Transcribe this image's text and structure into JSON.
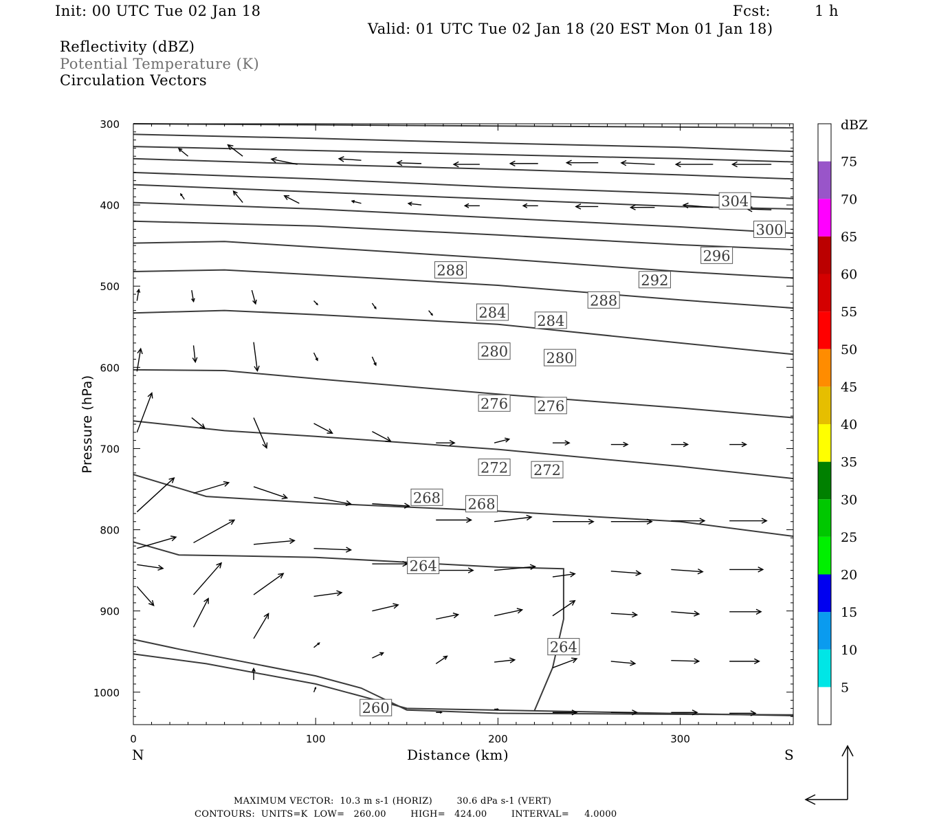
{
  "header": {
    "init": "Init: 00 UTC Tue 02 Jan 18",
    "fcst_label": "Fcst:",
    "fcst_value": "1 h",
    "valid": "Valid: 01 UTC Tue 02 Jan 18 (20 EST Mon 01 Jan 18)"
  },
  "legend_fields": {
    "line1": "Reflectivity (dBZ)",
    "line2": "Potential Temperature (K)",
    "line3": "Circulation Vectors"
  },
  "footer": {
    "line1": "MAXIMUM VECTOR:  10.3 m s-1 (HORIZ)        30.6 dPa s-1 (VERT)",
    "line2": "CONTOURS:  UNITS=K  LOW=   260.00        HIGH=   424.00        INTERVAL=     4.0000"
  },
  "colors": {
    "contour": "#3a3a3a",
    "vector": "#000000",
    "frame": "#000000"
  },
  "chart_data": {
    "type": "line",
    "xlabel": "Distance (km)",
    "ylabel": "Pressure (hPa)",
    "x_left_label": "N",
    "x_right_label": "S",
    "xlim": [
      0,
      362
    ],
    "ylim": [
      1040,
      300
    ],
    "xticks": [
      0,
      100,
      200,
      300
    ],
    "yticks": [
      300,
      400,
      500,
      600,
      700,
      800,
      900,
      1000
    ],
    "colorbar": {
      "unit": "dBZ",
      "bins": [
        {
          "from": 0,
          "to": 5,
          "color": "#ffffff"
        },
        {
          "from": 5,
          "to": 10,
          "color": "#00e6e6"
        },
        {
          "from": 10,
          "to": 15,
          "color": "#0a9bef"
        },
        {
          "from": 15,
          "to": 20,
          "color": "#0000f0"
        },
        {
          "from": 20,
          "to": 25,
          "color": "#00f000"
        },
        {
          "from": 25,
          "to": 30,
          "color": "#00c800"
        },
        {
          "from": 30,
          "to": 35,
          "color": "#008000"
        },
        {
          "from": 35,
          "to": 40,
          "color": "#ffff00"
        },
        {
          "from": 40,
          "to": 45,
          "color": "#e6be00"
        },
        {
          "from": 45,
          "to": 50,
          "color": "#ff8c00"
        },
        {
          "from": 50,
          "to": 55,
          "color": "#ff0000"
        },
        {
          "from": 55,
          "to": 60,
          "color": "#d40000"
        },
        {
          "from": 60,
          "to": 65,
          "color": "#bb0000"
        },
        {
          "from": 65,
          "to": 70,
          "color": "#ff00ff"
        },
        {
          "from": 70,
          "to": 75,
          "color": "#9955c9"
        },
        {
          "from": 75,
          "to": 80,
          "color": "#ffffff"
        }
      ],
      "labels": [
        "5",
        "10",
        "15",
        "20",
        "25",
        "30",
        "35",
        "40",
        "45",
        "50",
        "55",
        "60",
        "65",
        "70",
        "75"
      ]
    },
    "contours": [
      {
        "points": [
          [
            0,
            300
          ],
          [
            362,
            305
          ]
        ]
      },
      {
        "points": [
          [
            0,
            313
          ],
          [
            100,
            318
          ],
          [
            200,
            324
          ],
          [
            300,
            329
          ],
          [
            362,
            334
          ]
        ]
      },
      {
        "points": [
          [
            0,
            328
          ],
          [
            100,
            333
          ],
          [
            200,
            338
          ],
          [
            300,
            343
          ],
          [
            362,
            347
          ]
        ]
      },
      {
        "points": [
          [
            0,
            343
          ],
          [
            100,
            350
          ],
          [
            200,
            356
          ],
          [
            300,
            363
          ],
          [
            362,
            368
          ]
        ]
      },
      {
        "points": [
          [
            0,
            360
          ],
          [
            100,
            368
          ],
          [
            200,
            378
          ],
          [
            300,
            386
          ],
          [
            362,
            392
          ]
        ]
      },
      {
        "points": [
          [
            0,
            375
          ],
          [
            100,
            384
          ],
          [
            200,
            393
          ],
          [
            300,
            402
          ],
          [
            362,
            405
          ]
        ]
      },
      {
        "points": [
          [
            0,
            397
          ],
          [
            100,
            405
          ],
          [
            200,
            416
          ],
          [
            300,
            427
          ],
          [
            362,
            435
          ]
        ]
      },
      {
        "level": "304",
        "labels": [
          [
            330,
            395
          ]
        ],
        "points": [
          [
            0,
            420
          ],
          [
            100,
            426
          ],
          [
            200,
            437
          ],
          [
            300,
            449
          ],
          [
            362,
            455
          ]
        ]
      },
      {
        "level": "300",
        "labels": [
          [
            349,
            430
          ]
        ],
        "points": [
          [
            0,
            447
          ],
          [
            50,
            445
          ],
          [
            100,
            452
          ],
          [
            200,
            466
          ],
          [
            300,
            482
          ],
          [
            362,
            490
          ]
        ]
      },
      {
        "level": "296",
        "labels": [
          [
            320,
            462
          ]
        ],
        "points": [
          [
            0,
            482
          ],
          [
            50,
            480
          ],
          [
            100,
            486
          ],
          [
            200,
            499
          ],
          [
            300,
            517
          ],
          [
            362,
            527
          ]
        ]
      },
      {
        "level": "292",
        "labels": [
          [
            286,
            492
          ]
        ],
        "points": [
          [
            0,
            533
          ],
          [
            50,
            530
          ],
          [
            100,
            535
          ],
          [
            200,
            547
          ],
          [
            300,
            570
          ],
          [
            362,
            584
          ]
        ]
      },
      {
        "level": "288",
        "labels": [
          [
            174,
            480
          ],
          [
            258,
            517
          ]
        ],
        "points": [
          [
            0,
            603
          ],
          [
            50,
            604
          ],
          [
            100,
            614
          ],
          [
            200,
            633
          ],
          [
            300,
            650
          ],
          [
            362,
            662
          ]
        ]
      },
      {
        "level": "284",
        "labels": [
          [
            197,
            532
          ],
          [
            229,
            542
          ]
        ],
        "points": [
          [
            0,
            666
          ],
          [
            50,
            678
          ],
          [
            100,
            685
          ],
          [
            200,
            701
          ],
          [
            300,
            722
          ],
          [
            362,
            737
          ]
        ]
      },
      {
        "level": "280",
        "labels": [
          [
            198,
            580
          ],
          [
            234,
            588
          ]
        ],
        "points": [
          [
            0,
            732
          ],
          [
            40,
            759
          ],
          [
            100,
            767
          ],
          [
            200,
            777
          ],
          [
            300,
            790
          ],
          [
            362,
            808
          ]
        ]
      },
      {
        "level": "276",
        "labels": [
          [
            198,
            644
          ],
          [
            229,
            647
          ]
        ],
        "points": [
          [
            0,
            815
          ],
          [
            25,
            831
          ],
          [
            50,
            832
          ],
          [
            100,
            834
          ],
          [
            150,
            840
          ],
          [
            200,
            846
          ],
          [
            236,
            848
          ],
          [
            236,
            910
          ],
          [
            230,
            970
          ],
          [
            220,
            1023
          ]
        ]
      },
      {
        "level": "272",
        "labels": [
          [
            198,
            723
          ],
          [
            227,
            726
          ]
        ],
        "points": [
          [
            0,
            935
          ],
          [
            25,
            947
          ],
          [
            100,
            980
          ],
          [
            125,
            995
          ],
          [
            150,
            1022
          ],
          [
            200,
            1026
          ],
          [
            362,
            1028
          ]
        ]
      },
      {
        "level": "268",
        "labels": [
          [
            161,
            760
          ],
          [
            191,
            768
          ]
        ],
        "points": [
          [
            0,
            953
          ],
          [
            40,
            965
          ],
          [
            100,
            990
          ],
          [
            150,
            1020
          ],
          [
            362,
            1029
          ]
        ]
      },
      {
        "level": "264",
        "labels": [
          [
            159,
            844
          ],
          [
            236,
            944
          ]
        ],
        "points": []
      },
      {
        "level": "260",
        "labels": [
          [
            133,
            1019
          ]
        ],
        "points": []
      }
    ],
    "vectors": [
      {
        "x": 30,
        "p": 340,
        "u": -5,
        "v": -10
      },
      {
        "x": 60,
        "p": 340,
        "u": -8,
        "v": -15
      },
      {
        "x": 90,
        "p": 350,
        "u": -14,
        "v": -7
      },
      {
        "x": 125,
        "p": 345,
        "u": -12,
        "v": -2
      },
      {
        "x": 158,
        "p": 349,
        "u": -13,
        "v": -1
      },
      {
        "x": 190,
        "p": 350,
        "u": -14,
        "v": 0
      },
      {
        "x": 222,
        "p": 349,
        "u": -15,
        "v": 0
      },
      {
        "x": 255,
        "p": 348,
        "u": -17,
        "v": 0
      },
      {
        "x": 286,
        "p": 350,
        "u": -18,
        "v": -2
      },
      {
        "x": 318,
        "p": 350,
        "u": -20,
        "v": 0
      },
      {
        "x": 350,
        "p": 350,
        "u": -21,
        "v": 0
      },
      {
        "x": 28,
        "p": 393,
        "u": -2,
        "v": -7
      },
      {
        "x": 60,
        "p": 397,
        "u": -5,
        "v": -15
      },
      {
        "x": 91,
        "p": 398,
        "u": -8,
        "v": -10
      },
      {
        "x": 125,
        "p": 398,
        "u": -5,
        "v": -3
      },
      {
        "x": 158,
        "p": 400,
        "u": -7,
        "v": -2
      },
      {
        "x": 190,
        "p": 401,
        "u": -8,
        "v": 0
      },
      {
        "x": 222,
        "p": 401,
        "u": -8,
        "v": 0
      },
      {
        "x": 255,
        "p": 402,
        "u": -12,
        "v": 0
      },
      {
        "x": 286,
        "p": 403,
        "u": -13,
        "v": 0
      },
      {
        "x": 318,
        "p": 403,
        "u": -16,
        "v": -3
      },
      {
        "x": 350,
        "p": 406,
        "u": -13,
        "v": -1
      },
      {
        "x": 32,
        "p": 505,
        "u": 1,
        "v": 15
      },
      {
        "x": 65,
        "p": 505,
        "u": 2,
        "v": 18
      },
      {
        "x": 99,
        "p": 518,
        "u": 2,
        "v": 5
      },
      {
        "x": 131,
        "p": 521,
        "u": 2,
        "v": 7
      },
      {
        "x": 162,
        "p": 530,
        "u": 2,
        "v": 6
      },
      {
        "x": 33,
        "p": 573,
        "u": 1,
        "v": 22
      },
      {
        "x": 66,
        "p": 569,
        "u": 2,
        "v": 38
      },
      {
        "x": 99,
        "p": 582,
        "u": 2,
        "v": 10
      },
      {
        "x": 131,
        "p": 587,
        "u": 2,
        "v": 11
      },
      {
        "x": 32,
        "p": 662,
        "u": 7,
        "v": 14
      },
      {
        "x": 66,
        "p": 662,
        "u": 7,
        "v": 40
      },
      {
        "x": 99,
        "p": 669,
        "u": 10,
        "v": 13
      },
      {
        "x": 131,
        "p": 679,
        "u": 10,
        "v": 13
      },
      {
        "x": 166,
        "p": 693,
        "u": 10,
        "v": 0
      },
      {
        "x": 198,
        "p": 693,
        "u": 8,
        "v": -5
      },
      {
        "x": 230,
        "p": 693,
        "u": 9,
        "v": 0
      },
      {
        "x": 262,
        "p": 695,
        "u": 9,
        "v": 0
      },
      {
        "x": 295,
        "p": 695,
        "u": 9,
        "v": 0
      },
      {
        "x": 327,
        "p": 695,
        "u": 9,
        "v": 0
      },
      {
        "x": 2,
        "p": 680,
        "u": 8,
        "v": -52
      },
      {
        "x": 2,
        "p": 605,
        "u": 2,
        "v": -30
      },
      {
        "x": 2,
        "p": 518,
        "u": 1,
        "v": -15
      },
      {
        "x": 2,
        "p": 778,
        "u": 20,
        "v": -45
      },
      {
        "x": 2,
        "p": 823,
        "u": 21,
        "v": -15
      },
      {
        "x": 2,
        "p": 843,
        "u": 14,
        "v": 5
      },
      {
        "x": 2,
        "p": 870,
        "u": 9,
        "v": 25
      },
      {
        "x": 33,
        "p": 755,
        "u": 19,
        "v": -14
      },
      {
        "x": 66,
        "p": 747,
        "u": 18,
        "v": 15
      },
      {
        "x": 99,
        "p": 760,
        "u": 20,
        "v": 9
      },
      {
        "x": 131,
        "p": 768,
        "u": 20,
        "v": 3
      },
      {
        "x": 166,
        "p": 788,
        "u": 19,
        "v": 0
      },
      {
        "x": 198,
        "p": 790,
        "u": 20,
        "v": -6
      },
      {
        "x": 230,
        "p": 790,
        "u": 22,
        "v": 0
      },
      {
        "x": 262,
        "p": 790,
        "u": 22,
        "v": 0
      },
      {
        "x": 295,
        "p": 789,
        "u": 18,
        "v": 0
      },
      {
        "x": 327,
        "p": 789,
        "u": 20,
        "v": 0
      },
      {
        "x": 33,
        "p": 816,
        "u": 22,
        "v": -30
      },
      {
        "x": 66,
        "p": 818,
        "u": 22,
        "v": -5
      },
      {
        "x": 99,
        "p": 823,
        "u": 20,
        "v": 2
      },
      {
        "x": 131,
        "p": 842,
        "u": 19,
        "v": 0
      },
      {
        "x": 166,
        "p": 850,
        "u": 20,
        "v": 0
      },
      {
        "x": 198,
        "p": 850,
        "u": 22,
        "v": -5
      },
      {
        "x": 230,
        "p": 858,
        "u": 12,
        "v": -4
      },
      {
        "x": 262,
        "p": 851,
        "u": 16,
        "v": 3
      },
      {
        "x": 295,
        "p": 849,
        "u": 17,
        "v": 3
      },
      {
        "x": 327,
        "p": 849,
        "u": 18,
        "v": 0
      },
      {
        "x": 33,
        "p": 880,
        "u": 15,
        "v": -42
      },
      {
        "x": 66,
        "p": 880,
        "u": 16,
        "v": -28
      },
      {
        "x": 99,
        "p": 882,
        "u": 15,
        "v": -5
      },
      {
        "x": 131,
        "p": 900,
        "u": 14,
        "v": -8
      },
      {
        "x": 166,
        "p": 910,
        "u": 12,
        "v": -6
      },
      {
        "x": 198,
        "p": 906,
        "u": 15,
        "v": -8
      },
      {
        "x": 230,
        "p": 906,
        "u": 12,
        "v": -20
      },
      {
        "x": 262,
        "p": 903,
        "u": 14,
        "v": 2
      },
      {
        "x": 295,
        "p": 901,
        "u": 15,
        "v": 3
      },
      {
        "x": 327,
        "p": 901,
        "u": 17,
        "v": 0
      },
      {
        "x": 33,
        "p": 920,
        "u": 8,
        "v": -38
      },
      {
        "x": 66,
        "p": 934,
        "u": 8,
        "v": -33
      },
      {
        "x": 99,
        "p": 945,
        "u": 3,
        "v": -6
      },
      {
        "x": 131,
        "p": 958,
        "u": 6,
        "v": -7
      },
      {
        "x": 166,
        "p": 965,
        "u": 6,
        "v": -10
      },
      {
        "x": 198,
        "p": 963,
        "u": 11,
        "v": -3
      },
      {
        "x": 230,
        "p": 970,
        "u": 13,
        "v": -12
      },
      {
        "x": 262,
        "p": 962,
        "u": 13,
        "v": 3
      },
      {
        "x": 295,
        "p": 961,
        "u": 15,
        "v": 1
      },
      {
        "x": 327,
        "p": 962,
        "u": 16,
        "v": 0
      },
      {
        "x": 66,
        "p": 985,
        "u": 0,
        "v": -15
      },
      {
        "x": 99,
        "p": 1000,
        "u": 1,
        "v": -6
      },
      {
        "x": 166,
        "p": 1025,
        "u": 3,
        "v": 0
      },
      {
        "x": 198,
        "p": 1021,
        "u": 2,
        "v": 0
      },
      {
        "x": 230,
        "p": 1025,
        "u": 13,
        "v": 0
      },
      {
        "x": 262,
        "p": 1025,
        "u": 14,
        "v": 0
      },
      {
        "x": 295,
        "p": 1025,
        "u": 14,
        "v": 0
      },
      {
        "x": 327,
        "p": 1026,
        "u": 14,
        "v": 0
      }
    ]
  }
}
